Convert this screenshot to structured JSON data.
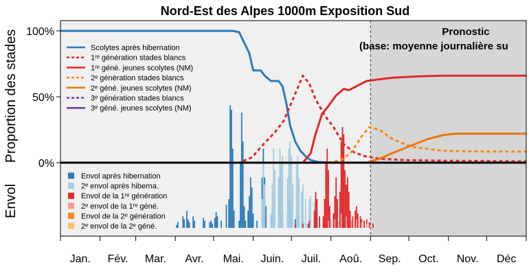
{
  "chart_data": {
    "type": "line",
    "title": "Nord-Est des Alpes 1000m Exposition Sud",
    "ylabel_top": "Proportion des stades",
    "ylabel_bottom": "Envol",
    "y_ticks": [
      "100%",
      "50%",
      "0%"
    ],
    "months": [
      "Jan.",
      "Fév.",
      "Mar.",
      "Avr.",
      "Mai.",
      "Juin.",
      "Juil.",
      "Aoû.",
      "Sep.",
      "Oct.",
      "Nov.",
      "Déc"
    ],
    "forecast": {
      "title": "Pronostic",
      "subtitle": "(base: moyenne journalière su",
      "start_day": 243
    },
    "ylim": [
      0,
      1.05
    ],
    "legend_top": [
      {
        "label": "Scolytes après hibernation",
        "color": "#2b7bba",
        "dash": false
      },
      {
        "label": "1ʳᵉ génération stades blancs",
        "color": "#e0282a",
        "dash": true
      },
      {
        "label": "1ʳᵉ géné. jeunes scolytes (NM)",
        "color": "#e0282a",
        "dash": false
      },
      {
        "label": "2ᵉ génération stades blancs",
        "color": "#f5891a",
        "dash": true
      },
      {
        "label": "2ᵉ géné. jeunes scolytes (NM)",
        "color": "#e8780e",
        "dash": false
      },
      {
        "label": "3ᵉ génération stades blancs",
        "color": "#6a3d9a",
        "dash": true
      },
      {
        "label": "3ᵉ géné. jeunes scolytes (NM)",
        "color": "#6a3d9a",
        "dash": false
      }
    ],
    "legend_bottom": [
      {
        "label": "Envol après hibernation",
        "color": "#2b7bba"
      },
      {
        "label": "2ᵉ envol après hiberna.",
        "color": "#a6cee3"
      },
      {
        "label": "Envol de la 1ʳᵉ génération",
        "color": "#e0282a"
      },
      {
        "label": "2ᵉ envol de la 1ʳᵉ géné.",
        "color": "#fb9a99"
      },
      {
        "label": "Envol de la 2ᵉ génération",
        "color": "#f5891a"
      },
      {
        "label": "2ᵉ envol de la 2ᵉ géné.",
        "color": "#fdbf6f"
      }
    ],
    "series": [
      {
        "name": "Scolytes après hibernation",
        "color": "#2b7bba",
        "dash": false,
        "points": [
          [
            0,
            1.0
          ],
          [
            135,
            1.0
          ],
          [
            140,
            0.99
          ],
          [
            143,
            0.93
          ],
          [
            148,
            0.83
          ],
          [
            151,
            0.7
          ],
          [
            157,
            0.7
          ],
          [
            160,
            0.66
          ],
          [
            165,
            0.62
          ],
          [
            171,
            0.62
          ],
          [
            174,
            0.58
          ],
          [
            177,
            0.45
          ],
          [
            180,
            0.28
          ],
          [
            184,
            0.16
          ],
          [
            188,
            0.09
          ],
          [
            192,
            0.05
          ],
          [
            196,
            0.02
          ],
          [
            202,
            0.005
          ],
          [
            215,
            0.0
          ]
        ]
      },
      {
        "name": "1ʳᵉ génération stades blancs",
        "color": "#e0282a",
        "dash": true,
        "points": [
          [
            95,
            0.0
          ],
          [
            140,
            0.0
          ],
          [
            150,
            0.04
          ],
          [
            160,
            0.15
          ],
          [
            168,
            0.23
          ],
          [
            175,
            0.32
          ],
          [
            183,
            0.5
          ],
          [
            190,
            0.66
          ],
          [
            195,
            0.6
          ],
          [
            200,
            0.48
          ],
          [
            207,
            0.36
          ],
          [
            214,
            0.27
          ],
          [
            222,
            0.14
          ],
          [
            230,
            0.08
          ],
          [
            238,
            0.05
          ],
          [
            250,
            0.03
          ],
          [
            270,
            0.02
          ],
          [
            300,
            0.015
          ],
          [
            365,
            0.01
          ]
        ]
      },
      {
        "name": "1ʳᵉ géné. jeunes scolytes (NM)",
        "color": "#e0282a",
        "dash": false,
        "points": [
          [
            95,
            0.0
          ],
          [
            190,
            0.0
          ],
          [
            196,
            0.07
          ],
          [
            200,
            0.22
          ],
          [
            205,
            0.37
          ],
          [
            210,
            0.43
          ],
          [
            216,
            0.51
          ],
          [
            222,
            0.56
          ],
          [
            226,
            0.55
          ],
          [
            232,
            0.58
          ],
          [
            240,
            0.62
          ],
          [
            248,
            0.63
          ],
          [
            260,
            0.645
          ],
          [
            280,
            0.655
          ],
          [
            300,
            0.66
          ],
          [
            365,
            0.66
          ]
        ]
      },
      {
        "name": "2ᵉ génération stades blancs",
        "color": "#f5891a",
        "dash": true,
        "points": [
          [
            210,
            0.0
          ],
          [
            220,
            0.02
          ],
          [
            228,
            0.08
          ],
          [
            236,
            0.2
          ],
          [
            242,
            0.27
          ],
          [
            250,
            0.25
          ],
          [
            260,
            0.18
          ],
          [
            275,
            0.12
          ],
          [
            300,
            0.09
          ],
          [
            330,
            0.085
          ],
          [
            365,
            0.085
          ]
        ]
      },
      {
        "name": "2ᵉ géné. jeunes scolytes (NM)",
        "color": "#e8780e",
        "dash": false,
        "points": [
          [
            230,
            0.0
          ],
          [
            240,
            0.0
          ],
          [
            250,
            0.03
          ],
          [
            262,
            0.08
          ],
          [
            275,
            0.13
          ],
          [
            288,
            0.18
          ],
          [
            300,
            0.21
          ],
          [
            310,
            0.22
          ],
          [
            330,
            0.22
          ],
          [
            365,
            0.22
          ]
        ]
      }
    ],
    "flight_bars": [
      {
        "name": "Envol après hibernation",
        "color": "#2b7bba",
        "points": [
          [
            91,
            0.02
          ],
          [
            92,
            0.04
          ],
          [
            96,
            0.08
          ],
          [
            97,
            0.06
          ],
          [
            99,
            0.12
          ],
          [
            100,
            0.06
          ],
          [
            101,
            0.04
          ],
          [
            104,
            0.08
          ],
          [
            105,
            0.05
          ],
          [
            112,
            0.07
          ],
          [
            113,
            0.05
          ],
          [
            117,
            0.04
          ],
          [
            118,
            0.05
          ],
          [
            119,
            0.03
          ],
          [
            121,
            0.07
          ],
          [
            122,
            0.11
          ],
          [
            123,
            0.08
          ],
          [
            126,
            0.05
          ],
          [
            130,
            0.16
          ],
          [
            132,
            0.2
          ],
          [
            133,
            0.85
          ],
          [
            134,
            0.82
          ],
          [
            135,
            0.55
          ],
          [
            136,
            0.12
          ],
          [
            140,
            0.05
          ],
          [
            141,
            0.45
          ],
          [
            142,
            0.8
          ],
          [
            143,
            0.6
          ],
          [
            144,
            0.15
          ],
          [
            145,
            0.05
          ],
          [
            147,
            0.12
          ],
          [
            148,
            0.22
          ],
          [
            149,
            0.35
          ],
          [
            150,
            0.28
          ],
          [
            151,
            0.1
          ],
          [
            154,
            0.05
          ],
          [
            158,
            0.35
          ],
          [
            159,
            0.55
          ],
          [
            160,
            0.35
          ],
          [
            161,
            0.15
          ],
          [
            165,
            0.08
          ],
          [
            166,
            0.15
          ],
          [
            167,
            0.1
          ],
          [
            171,
            0.3
          ],
          [
            172,
            0.42
          ],
          [
            173,
            0.35
          ],
          [
            174,
            0.12
          ],
          [
            178,
            0.1
          ],
          [
            179,
            0.2
          ],
          [
            180,
            0.16
          ],
          [
            181,
            0.12
          ],
          [
            184,
            0.06
          ],
          [
            185,
            0.1
          ],
          [
            186,
            0.08
          ],
          [
            189,
            0.04
          ],
          [
            190,
            0.06
          ],
          [
            192,
            0.04
          ],
          [
            194,
            0.03
          ],
          [
            196,
            0.03
          ],
          [
            199,
            0.03
          ],
          [
            201,
            0.02
          ]
        ]
      },
      {
        "name": "2ᵉ envol après hiberna.",
        "color": "#a6cee3",
        "points": [
          [
            158,
            0.2
          ],
          [
            159,
            0.45
          ],
          [
            160,
            0.3
          ],
          [
            165,
            0.1
          ],
          [
            166,
            0.3
          ],
          [
            167,
            0.55
          ],
          [
            168,
            0.4
          ],
          [
            171,
            0.35
          ],
          [
            172,
            0.55
          ],
          [
            173,
            0.45
          ],
          [
            174,
            0.5
          ],
          [
            178,
            0.35
          ],
          [
            179,
            0.55
          ],
          [
            180,
            0.6
          ],
          [
            181,
            0.5
          ],
          [
            182,
            0.3
          ],
          [
            185,
            0.45
          ],
          [
            186,
            0.5
          ],
          [
            187,
            0.35
          ],
          [
            189,
            0.25
          ],
          [
            190,
            0.3
          ],
          [
            192,
            0.2
          ],
          [
            195,
            0.2
          ],
          [
            196,
            0.22
          ],
          [
            199,
            0.18
          ],
          [
            201,
            0.12
          ],
          [
            203,
            0.08
          ],
          [
            206,
            0.06
          ],
          [
            210,
            0.08
          ],
          [
            212,
            0.06
          ],
          [
            215,
            0.05
          ],
          [
            218,
            0.04
          ],
          [
            220,
            0.08
          ],
          [
            222,
            0.06
          ],
          [
            225,
            0.04
          ],
          [
            228,
            0.03
          ]
        ]
      },
      {
        "name": "Envol de la 1ʳᵉ génération",
        "color": "#e0282a",
        "points": [
          [
            184,
            0.02
          ],
          [
            190,
            0.03
          ],
          [
            195,
            0.05
          ],
          [
            199,
            0.12
          ],
          [
            200,
            0.25
          ],
          [
            201,
            0.2
          ],
          [
            203,
            0.08
          ],
          [
            206,
            0.08
          ],
          [
            207,
            0.2
          ],
          [
            208,
            0.45
          ],
          [
            209,
            0.55
          ],
          [
            210,
            0.4
          ],
          [
            211,
            0.15
          ],
          [
            214,
            0.1
          ],
          [
            215,
            0.22
          ],
          [
            216,
            0.35
          ],
          [
            217,
            0.2
          ],
          [
            219,
            0.25
          ],
          [
            220,
            0.6
          ],
          [
            221,
            0.7
          ],
          [
            222,
            0.65
          ],
          [
            223,
            0.4
          ],
          [
            224,
            0.3
          ],
          [
            225,
            0.35
          ],
          [
            226,
            0.25
          ],
          [
            227,
            0.12
          ],
          [
            229,
            0.08
          ],
          [
            231,
            0.12
          ],
          [
            232,
            0.15
          ],
          [
            233,
            0.1
          ],
          [
            235,
            0.08
          ],
          [
            236,
            0.06
          ],
          [
            238,
            0.05
          ],
          [
            240,
            0.06
          ],
          [
            242,
            0.04
          ],
          [
            245,
            0.03
          ]
        ]
      },
      {
        "name": "2ᵉ envol de la 1ʳᵉ géné.",
        "color": "#fb9a99",
        "points": [
          [
            210,
            0.05
          ],
          [
            215,
            0.06
          ],
          [
            220,
            0.1
          ],
          [
            224,
            0.08
          ],
          [
            228,
            0.05
          ],
          [
            232,
            0.06
          ],
          [
            236,
            0.04
          ],
          [
            240,
            0.03
          ]
        ]
      }
    ]
  }
}
